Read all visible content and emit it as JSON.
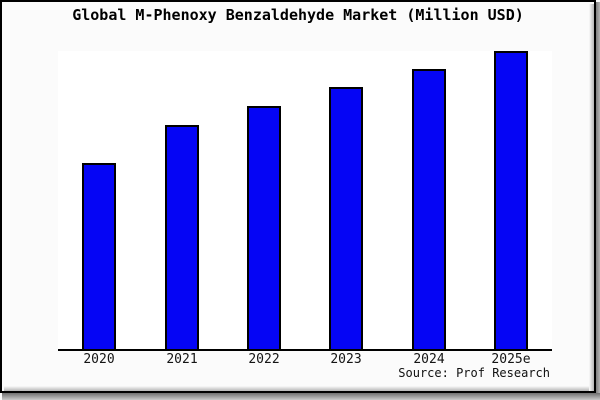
{
  "title": "Global M-Phenoxy Benzaldehyde Market (Million USD)",
  "source": "Source: Prof Research",
  "colors": {
    "bar_fill": "#0505f5",
    "bar_edge": "#000000",
    "plot_bg": "#ffffff",
    "figure_bg": "#fbfbfb",
    "axis_line": "#000000",
    "frame": "#000000"
  },
  "chart_data": {
    "type": "bar",
    "categories": [
      "2020",
      "2021",
      "2022",
      "2023",
      "2024",
      "2025e"
    ],
    "values": [
      62.5,
      75.3,
      81.6,
      88.0,
      94.0,
      100.0
    ],
    "title": "Global M-Phenoxy Benzaldehyde Market (Million USD)",
    "xlabel": "",
    "ylabel": "",
    "ylim": [
      0,
      100
    ],
    "grid": false,
    "legend": null,
    "value_note": "no y-axis ticks or data labels shown; values estimated relative to tallest bar (2025e) = 100"
  }
}
